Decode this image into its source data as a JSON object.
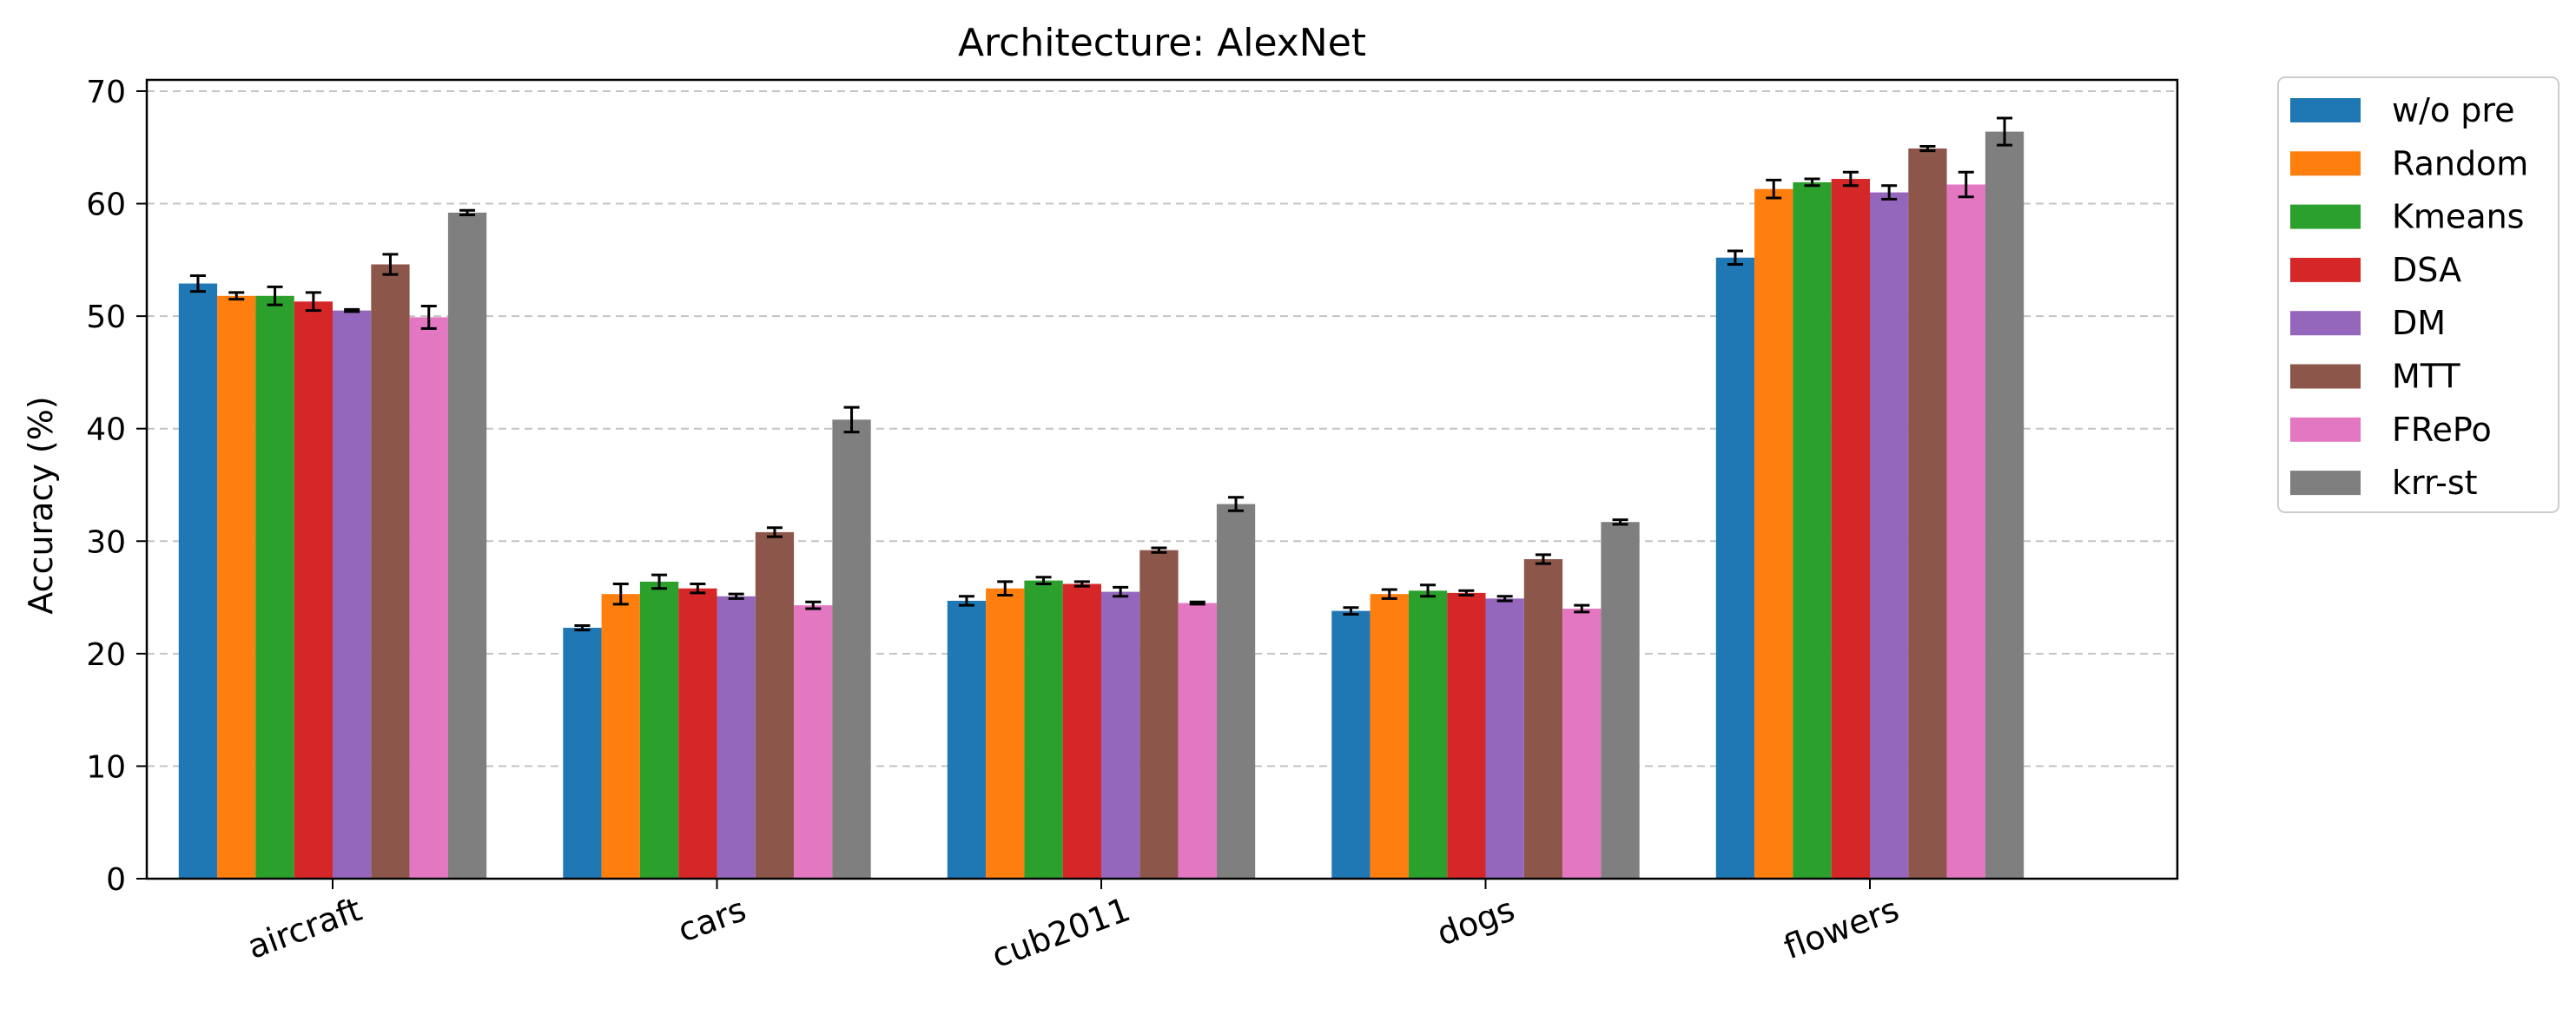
{
  "chart_data": {
    "type": "bar",
    "title": "Architecture: AlexNet",
    "xlabel": "",
    "ylabel": "Accuracy (%)",
    "ylim": [
      0,
      71
    ],
    "yticks": [
      0,
      10,
      20,
      30,
      40,
      50,
      60,
      70
    ],
    "grid": "y-dashed",
    "legend_position": "outside-right",
    "categories": [
      "aircraft",
      "cars",
      "cub2011",
      "dogs",
      "flowers"
    ],
    "series": [
      {
        "name": "w/o pre",
        "color": "#1f77b4",
        "values": [
          52.9,
          22.3,
          24.7,
          23.8,
          55.2
        ],
        "errors": [
          0.7,
          0.2,
          0.4,
          0.3,
          0.6
        ]
      },
      {
        "name": "Random",
        "color": "#ff7f0e",
        "values": [
          51.8,
          25.3,
          25.8,
          25.3,
          61.3
        ],
        "errors": [
          0.3,
          0.9,
          0.6,
          0.4,
          0.8
        ]
      },
      {
        "name": "Kmeans",
        "color": "#2ca02c",
        "values": [
          51.8,
          26.4,
          26.5,
          25.6,
          61.9
        ],
        "errors": [
          0.8,
          0.6,
          0.3,
          0.5,
          0.3
        ]
      },
      {
        "name": "DSA",
        "color": "#d62728",
        "values": [
          51.3,
          25.8,
          26.2,
          25.4,
          62.2
        ],
        "errors": [
          0.8,
          0.4,
          0.2,
          0.2,
          0.6
        ]
      },
      {
        "name": "DM",
        "color": "#9467bd",
        "values": [
          50.5,
          25.1,
          25.5,
          24.9,
          61.0
        ],
        "errors": [
          0.1,
          0.2,
          0.4,
          0.2,
          0.6
        ]
      },
      {
        "name": "MTT",
        "color": "#8c564b",
        "values": [
          54.6,
          30.8,
          29.2,
          28.4,
          64.9
        ],
        "errors": [
          0.9,
          0.4,
          0.2,
          0.4,
          0.2
        ]
      },
      {
        "name": "FRePo",
        "color": "#e377c2",
        "values": [
          49.9,
          24.3,
          24.5,
          24.0,
          61.7
        ],
        "errors": [
          1.0,
          0.3,
          0.1,
          0.3,
          1.1
        ]
      },
      {
        "name": "krr-st",
        "color": "#7f7f7f",
        "values": [
          59.2,
          40.8,
          33.3,
          31.7,
          66.4
        ],
        "errors": [
          0.2,
          1.1,
          0.6,
          0.2,
          1.2
        ]
      }
    ]
  }
}
